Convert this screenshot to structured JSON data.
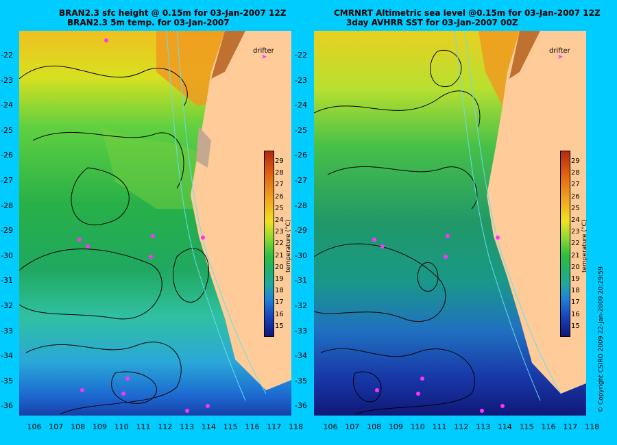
{
  "left_panel": {
    "title_line1": "BRAN2.3 sfc height @ 0.15m for 03-Jan-2007 12Z",
    "title_line2": "BRAN2.3 5m temp. for 03-Jan-2007"
  },
  "right_panel": {
    "title_line1": "CMRNRT Altimetric sea level  @0.15m  for 03-Jan-2007 12Z",
    "title_line2": "3day AVHRR SST for 03-Jan-2007 00Z"
  },
  "axes": {
    "y_ticks": [
      "-22",
      "-23",
      "-24",
      "-25",
      "-26",
      "-27",
      "-28",
      "-29",
      "-30",
      "-31",
      "-32",
      "-33",
      "-34",
      "-35",
      "-36"
    ],
    "x_ticks": [
      "106",
      "107",
      "108",
      "109",
      "110",
      "111",
      "112",
      "113",
      "114",
      "115",
      "116",
      "117",
      "118"
    ],
    "lat_range": [
      -36.5,
      -21.3
    ],
    "lon_range": [
      105.4,
      118.3
    ]
  },
  "colorbar": {
    "ticks": [
      "29",
      "28",
      "27",
      "26",
      "25",
      "24",
      "23",
      "22",
      "21",
      "20",
      "19",
      "18",
      "17",
      "16",
      "15"
    ],
    "units": "temperature (°C)"
  },
  "legend": {
    "drifter_label": "drifter",
    "drifter_color": "#ff33ff"
  },
  "copyright": "© Copyright CSIRO 2009   22-Jan-2009 20:29:59",
  "colors": {
    "background": "#00ccff",
    "land": "#ffcc99",
    "contour": "#000000",
    "isobath": "#66ddee"
  }
}
